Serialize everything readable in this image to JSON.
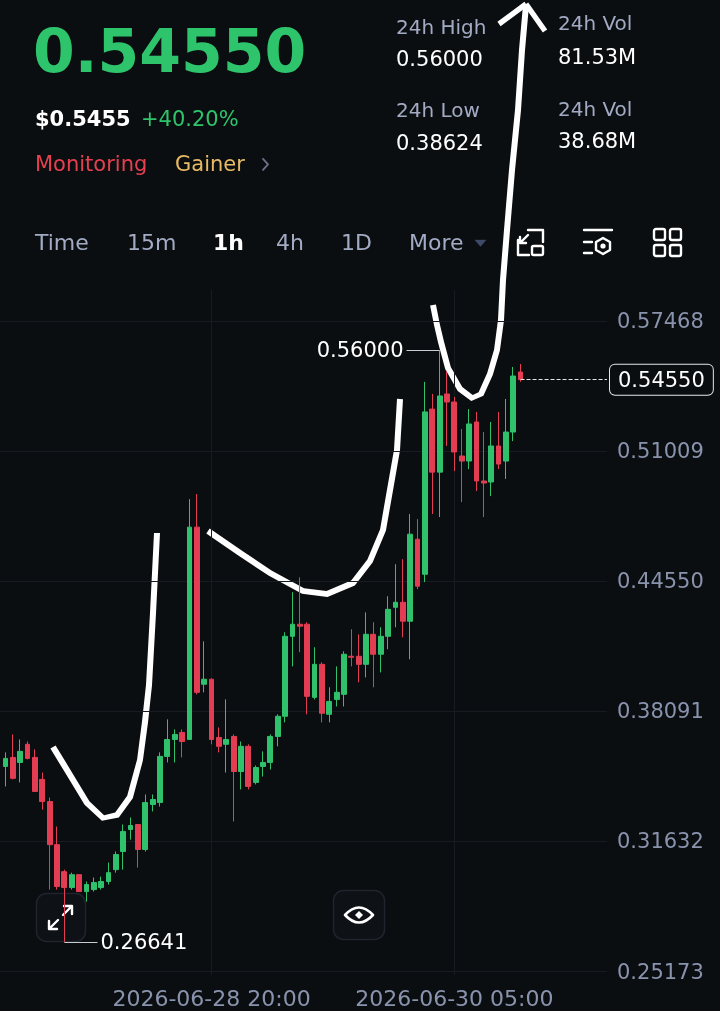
{
  "chart_data": [
    {
      "type": "other",
      "title": "0.54550",
      "annotations": [
        "$0.5455",
        "+40.20%",
        "Monitoring",
        "Gainer",
        "24h High",
        "0.56000",
        "24h Low",
        "0.38624",
        "24h Vol",
        "81.53M",
        "24h Vol",
        "38.68M",
        "Time",
        "15m",
        "1h",
        "4h",
        "1D",
        "More"
      ]
    },
    {
      "type": "candlestick",
      "x": [
        "2026-06-27T16:00",
        "2026-06-27T17:00",
        "2026-06-27T18:00",
        "2026-06-27T19:00",
        "2026-06-27T20:00",
        "2026-06-27T21:00",
        "2026-06-27T22:00",
        "2026-06-27T23:00",
        "2026-06-28T00:00",
        "2026-06-28T01:00",
        "2026-06-28T02:00",
        "2026-06-28T03:00",
        "2026-06-28T04:00",
        "2026-06-28T05:00",
        "2026-06-28T06:00",
        "2026-06-28T07:00",
        "2026-06-28T08:00",
        "2026-06-28T09:00",
        "2026-06-28T10:00",
        "2026-06-28T11:00",
        "2026-06-28T12:00",
        "2026-06-28T13:00",
        "2026-06-28T14:00",
        "2026-06-28T15:00",
        "2026-06-28T16:00",
        "2026-06-28T17:00",
        "2026-06-28T18:00",
        "2026-06-28T19:00",
        "2026-06-28T20:00",
        "2026-06-28T21:00",
        "2026-06-28T22:00",
        "2026-06-28T23:00",
        "2026-06-29T00:00",
        "2026-06-29T01:00",
        "2026-06-29T02:00",
        "2026-06-29T03:00",
        "2026-06-29T04:00",
        "2026-06-29T05:00",
        "2026-06-29T06:00",
        "2026-06-29T07:00",
        "2026-06-29T08:00",
        "2026-06-29T09:00",
        "2026-06-29T10:00",
        "2026-06-29T11:00",
        "2026-06-29T12:00",
        "2026-06-29T13:00",
        "2026-06-29T14:00",
        "2026-06-29T15:00",
        "2026-06-29T16:00",
        "2026-06-29T17:00",
        "2026-06-29T18:00",
        "2026-06-29T19:00",
        "2026-06-29T20:00",
        "2026-06-29T21:00",
        "2026-06-29T22:00",
        "2026-06-29T23:00",
        "2026-06-30T00:00",
        "2026-06-30T01:00",
        "2026-06-30T02:00",
        "2026-06-30T03:00",
        "2026-06-30T04:00",
        "2026-06-30T05:00",
        "2026-06-30T06:00",
        "2026-06-30T07:00",
        "2026-06-30T08:00",
        "2026-06-30T09:00",
        "2026-06-30T10:00",
        "2026-06-30T11:00",
        "2026-06-30T12:00",
        "2026-06-30T13:00",
        "2026-06-30T14:00"
      ],
      "ohlc": [
        [
          0.3535,
          0.3605,
          0.3436,
          0.3575
        ],
        [
          0.358,
          0.3694,
          0.3471,
          0.3476
        ],
        [
          0.3555,
          0.3669,
          0.3456,
          0.361
        ],
        [
          0.3645,
          0.3659,
          0.357,
          0.3575
        ],
        [
          0.358,
          0.362,
          0.3411,
          0.3411
        ],
        [
          0.3471,
          0.3505,
          0.3321,
          0.3361
        ],
        [
          0.3361,
          0.3381,
          0.2924,
          0.3147
        ],
        [
          0.3147,
          0.3237,
          0.2924,
          0.2939
        ],
        [
          0.3013,
          0.3023,
          0.26641,
          0.2934
        ],
        [
          0.2934,
          0.3008,
          0.2924,
          0.2998
        ],
        [
          0.2998,
          0.2998,
          0.2914,
          0.2914
        ],
        [
          0.2914,
          0.2964,
          0.2864,
          0.2949
        ],
        [
          0.2924,
          0.2984,
          0.2914,
          0.2959
        ],
        [
          0.2934,
          0.2988,
          0.2924,
          0.2964
        ],
        [
          0.2964,
          0.3058,
          0.2949,
          0.3008
        ],
        [
          0.3023,
          0.3113,
          0.3008,
          0.3098
        ],
        [
          0.3113,
          0.3247,
          0.3023,
          0.3212
        ],
        [
          0.3222,
          0.3282,
          0.3172,
          0.3242
        ],
        [
          0.3247,
          0.3247,
          0.3033,
          0.3123
        ],
        [
          0.3123,
          0.3396,
          0.3113,
          0.3356
        ],
        [
          0.3346,
          0.3396,
          0.3312,
          0.3371
        ],
        [
          0.3356,
          0.3605,
          0.3336,
          0.3585
        ],
        [
          0.3585,
          0.3769,
          0.3555,
          0.3669
        ],
        [
          0.3669,
          0.3719,
          0.3555,
          0.3694
        ],
        [
          0.3704,
          0.3719,
          0.358,
          0.3659
        ],
        [
          0.3669,
          0.4862,
          0.3669,
          0.4723
        ],
        [
          0.4723,
          0.4887,
          0.3893,
          0.3903
        ],
        [
          0.3943,
          0.4156,
          0.3903,
          0.3968
        ],
        [
          0.3968,
          0.3972,
          0.3645,
          0.3669
        ],
        [
          0.3679,
          0.3729,
          0.3605,
          0.3635
        ],
        [
          0.3645,
          0.3868,
          0.3505,
          0.3669
        ],
        [
          0.3684,
          0.3694,
          0.3262,
          0.351
        ],
        [
          0.351,
          0.3659,
          0.3421,
          0.3635
        ],
        [
          0.3635,
          0.3645,
          0.3421,
          0.3436
        ],
        [
          0.3456,
          0.354,
          0.3446,
          0.353
        ],
        [
          0.3535,
          0.361,
          0.3485,
          0.3555
        ],
        [
          0.3555,
          0.3694,
          0.352,
          0.3684
        ],
        [
          0.3684,
          0.3794,
          0.3635,
          0.3784
        ],
        [
          0.3784,
          0.4201,
          0.3754,
          0.4181
        ],
        [
          0.4181,
          0.44,
          0.4032,
          0.4241
        ],
        [
          0.4241,
          0.4474,
          0.4102,
          0.4231
        ],
        [
          0.4241,
          0.4251,
          0.3794,
          0.3883
        ],
        [
          0.3878,
          0.4127,
          0.3868,
          0.4042
        ],
        [
          0.4042,
          0.4052,
          0.3754,
          0.3799
        ],
        [
          0.3794,
          0.3928,
          0.3754,
          0.3858
        ],
        [
          0.3868,
          0.4032,
          0.3833,
          0.3903
        ],
        [
          0.3893,
          0.4107,
          0.3833,
          0.4092
        ],
        [
          0.4082,
          0.4216,
          0.4032,
          0.4077
        ],
        [
          0.4082,
          0.4191,
          0.3953,
          0.4042
        ],
        [
          0.4042,
          0.43,
          0.3977,
          0.4191
        ],
        [
          0.4191,
          0.4251,
          0.3928,
          0.4092
        ],
        [
          0.4092,
          0.4226,
          0.4002,
          0.4181
        ],
        [
          0.4181,
          0.438,
          0.4117,
          0.4315
        ],
        [
          0.4325,
          0.4539,
          0.4226,
          0.435
        ],
        [
          0.435,
          0.4564,
          0.4176,
          0.4256
        ],
        [
          0.4256,
          0.4788,
          0.4067,
          0.4688
        ],
        [
          0.4663,
          0.4763,
          0.4415,
          0.443
        ],
        [
          0.4489,
          0.5444,
          0.445,
          0.5295
        ],
        [
          0.5309,
          0.5384,
          0.4788,
          0.4996
        ],
        [
          0.4996,
          0.56,
          0.4773,
          0.5374
        ],
        [
          0.5384,
          0.5498,
          0.5126,
          0.5344
        ],
        [
          0.5344,
          0.5369,
          0.5001,
          0.5096
        ],
        [
          0.5076,
          0.521,
          0.4847,
          0.5051
        ],
        [
          0.5051,
          0.5309,
          0.5011,
          0.5235
        ],
        [
          0.5245,
          0.5295,
          0.4902,
          0.4952
        ],
        [
          0.4952,
          0.5195,
          0.4773,
          0.4942
        ],
        [
          0.4947,
          0.5245,
          0.4877,
          0.5126
        ],
        [
          0.5126,
          0.5295,
          0.5011,
          0.5036
        ],
        [
          0.5051,
          0.5359,
          0.4962,
          0.5195
        ],
        [
          0.5195,
          0.5518,
          0.515,
          0.5473
        ],
        [
          0.5493,
          0.5533,
          0.5444,
          0.5455
        ]
      ],
      "colors": [
        "#2fc16c",
        "#e23d52",
        "#2fc16c",
        "#e23d52",
        "#e23d52",
        "#e23d52",
        "#e23d52",
        "#e23d52",
        "#e23d52",
        "#2fc16c",
        "#e23d52",
        "#2fc16c",
        "#2fc16c",
        "#2fc16c",
        "#2fc16c",
        "#2fc16c",
        "#2fc16c",
        "#2fc16c",
        "#e23d52",
        "#2fc16c",
        "#2fc16c",
        "#2fc16c",
        "#2fc16c",
        "#2fc16c",
        "#e23d52",
        "#2fc16c",
        "#e23d52",
        "#2fc16c",
        "#e23d52",
        "#e23d52",
        "#2fc16c",
        "#e23d52",
        "#2fc16c",
        "#e23d52",
        "#2fc16c",
        "#2fc16c",
        "#2fc16c",
        "#2fc16c",
        "#2fc16c",
        "#2fc16c",
        "#e23d52",
        "#e23d52",
        "#2fc16c",
        "#e23d52",
        "#2fc16c",
        "#2fc16c",
        "#2fc16c",
        "#e23d52",
        "#e23d52",
        "#2fc16c",
        "#e23d52",
        "#2fc16c",
        "#2fc16c",
        "#2fc16c",
        "#e23d52",
        "#2fc16c",
        "#e23d52",
        "#2fc16c",
        "#e23d52",
        "#2fc16c",
        "#e23d52",
        "#e23d52",
        "#e23d52",
        "#2fc16c",
        "#e23d52",
        "#e23d52",
        "#2fc16c",
        "#e23d52",
        "#2fc16c",
        "#2fc16c",
        "#e23d52"
      ],
      "xlim": [
        "2026-06-27T15:15",
        "2026-07-01T01:45"
      ],
      "xticks": [
        {
          "value": "2026-06-28T20:00",
          "label": "2026-06-28 20:00"
        },
        {
          "value": "2026-06-30T05:00",
          "label": "2026-06-30 05:00"
        }
      ],
      "ylim": [
        0.25,
        0.59
      ],
      "yticks": [
        0.57468,
        0.51009,
        {
          "value": 0.4455,
          "label": "0.44550"
        },
        0.38091,
        0.31632,
        0.25173
      ],
      "grid": true,
      "ref_lines": [
        {
          "axis": "y",
          "value": 0.5455,
          "label": "0.54550",
          "line_style": "dashed",
          "color": "#e6e6e6"
        }
      ],
      "annotations": [
        {
          "text": "0.56000",
          "x": "2026-06-30T03:00",
          "y": 0.56
        },
        {
          "text": "0.26641",
          "x": "2026-06-28T00:00",
          "y": 0.26641
        }
      ]
    }
  ]
}
